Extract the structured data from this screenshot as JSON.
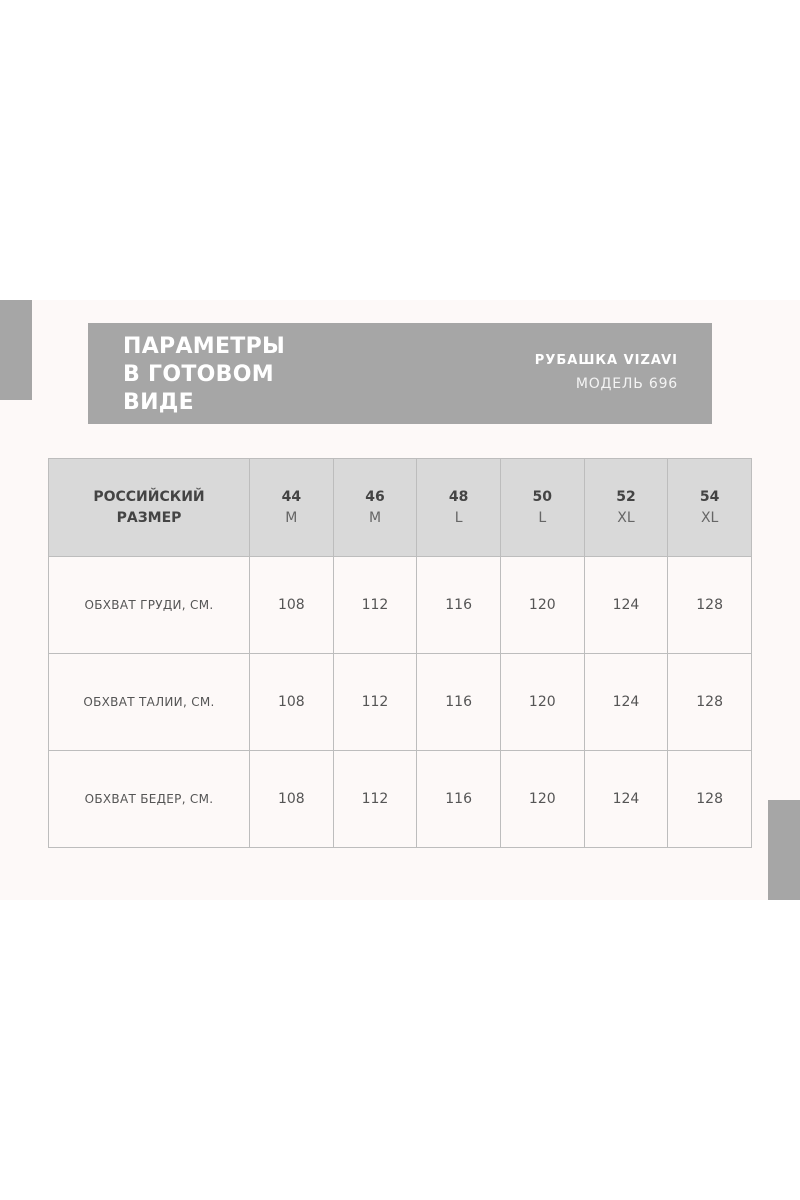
{
  "header": {
    "title_lines": [
      "ПАРАМЕТРЫ",
      "В ГОТОВОМ",
      "ВИДЕ"
    ],
    "product": "РУБАШКА VIZAVI",
    "model": "МОДЕЛЬ 696"
  },
  "table": {
    "header_label_lines": [
      "РОССИЙСКИЙ",
      "РАЗМЕР"
    ],
    "sizes": [
      {
        "ru": "44",
        "intl": "M"
      },
      {
        "ru": "46",
        "intl": "M"
      },
      {
        "ru": "48",
        "intl": "L"
      },
      {
        "ru": "50",
        "intl": "L"
      },
      {
        "ru": "52",
        "intl": "XL"
      },
      {
        "ru": "54",
        "intl": "XL"
      }
    ],
    "rows": [
      {
        "label": "ОБХВАТ ГРУДИ, СМ.",
        "values": [
          "108",
          "112",
          "116",
          "120",
          "124",
          "128"
        ]
      },
      {
        "label": "ОБХВАТ ТАЛИИ, СМ.",
        "values": [
          "108",
          "112",
          "116",
          "120",
          "124",
          "128"
        ]
      },
      {
        "label": "ОБХВАТ БЕДЕР, СМ.",
        "values": [
          "108",
          "112",
          "116",
          "120",
          "124",
          "128"
        ]
      }
    ]
  },
  "colors": {
    "accent_grey": "#a6a6a6",
    "header_row": "#d9d9d9",
    "panel": "#fdf9f8"
  }
}
